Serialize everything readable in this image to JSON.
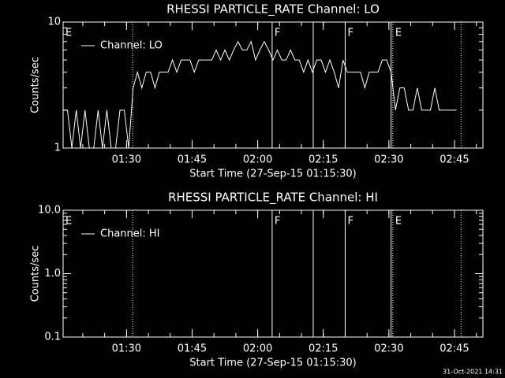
{
  "chart_data": [
    {
      "type": "line",
      "title": "RHESSI PARTICLE_RATE Channel: LO",
      "xlabel": "Start Time (27-Sep-15 01:15:30)",
      "ylabel": "Counts/sec",
      "log_y": true,
      "ylim": [
        1,
        10
      ],
      "yticks": [
        1,
        10
      ],
      "xlim": [
        75.5,
        171.5
      ],
      "xticks": [
        {
          "value": 90,
          "label": "01:30"
        },
        {
          "value": 105,
          "label": "01:45"
        },
        {
          "value": 120,
          "label": "02:00"
        },
        {
          "value": 135,
          "label": "02:15"
        },
        {
          "value": 150,
          "label": "02:30"
        },
        {
          "value": 165,
          "label": "02:45"
        }
      ],
      "x": [
        75.5,
        76.5,
        77.5,
        78.5,
        79.5,
        80.5,
        81.5,
        82.5,
        83.5,
        84.5,
        85.5,
        86.5,
        87.5,
        88.5,
        89.5,
        90.5,
        91.5,
        92.5,
        93.5,
        94.5,
        95.5,
        96.5,
        97.5,
        98.5,
        99.5,
        100.5,
        101.5,
        102.5,
        103.5,
        104.5,
        105.5,
        106.5,
        107.5,
        108.5,
        109.5,
        110.5,
        111.5,
        112.5,
        113.5,
        114.5,
        115.5,
        116.5,
        117.5,
        118.5,
        119.5,
        120.5,
        121.5,
        122.5,
        123.5,
        124.5,
        125.5,
        126.5,
        127.5,
        128.5,
        129.5,
        130.5,
        131.5,
        132.5,
        133.5,
        134.5,
        135.5,
        136.5,
        137.5,
        138.5,
        139.5,
        140.5,
        141.5,
        142.5,
        143.5,
        144.5,
        145.5,
        146.5,
        147.5,
        148.5,
        149.5,
        150.5,
        151.5,
        152.5,
        153.5,
        154.5,
        155.5,
        156.5,
        157.5,
        158.5,
        159.5,
        160.5,
        161.5,
        162.5,
        163.5,
        164.5,
        165.5
      ],
      "series": [
        {
          "name": "Channel: LO",
          "color": "#ffffff",
          "values": [
            2,
            2,
            1,
            2,
            1,
            2,
            1,
            1,
            2,
            1,
            2,
            1,
            1,
            2,
            2,
            1,
            3,
            4,
            3,
            4,
            4,
            3,
            4,
            4,
            4,
            5,
            4,
            5,
            5,
            5,
            4,
            5,
            5,
            5,
            5,
            6,
            5,
            6,
            5,
            6,
            7,
            6,
            6,
            7,
            5,
            6,
            7,
            6,
            5,
            6,
            5,
            5,
            6,
            5,
            5,
            4,
            5,
            4,
            5,
            5,
            4,
            5,
            4,
            3,
            5,
            4,
            4,
            4,
            4,
            3,
            4,
            4,
            4,
            5,
            5,
            4,
            2,
            3,
            3,
            2,
            2,
            3,
            2,
            2,
            2,
            3,
            2,
            2,
            2,
            2,
            2
          ]
        }
      ],
      "events": [
        {
          "x": 75.5,
          "style": "dotted",
          "label": "E"
        },
        {
          "x": 91.4,
          "style": "dotted"
        },
        {
          "x": 123.3,
          "style": "solid",
          "label": "F"
        },
        {
          "x": 132.7,
          "style": "solid"
        },
        {
          "x": 140.0,
          "style": "solid",
          "label": "F"
        },
        {
          "x": 150.5,
          "style": "solid"
        },
        {
          "x": 150.9,
          "style": "dotted",
          "label": "E"
        },
        {
          "x": 166.5,
          "style": "dotted"
        }
      ]
    },
    {
      "type": "line",
      "title": "RHESSI PARTICLE_RATE Channel: HI",
      "xlabel": "Start Time (27-Sep-15 01:15:30)",
      "ylabel": "Counts/sec",
      "log_y": true,
      "ylim": [
        0.1,
        10
      ],
      "yticks": [
        0.1,
        {
          "value": 1,
          "label": "1.0"
        },
        {
          "value": 10,
          "label": "10.0"
        }
      ],
      "xlim": [
        75.5,
        171.5
      ],
      "xticks": [
        {
          "value": 90,
          "label": "01:30"
        },
        {
          "value": 105,
          "label": "01:45"
        },
        {
          "value": 120,
          "label": "02:00"
        },
        {
          "value": 135,
          "label": "02:15"
        },
        {
          "value": 150,
          "label": "02:30"
        },
        {
          "value": 165,
          "label": "02:45"
        }
      ],
      "x": [],
      "series": [
        {
          "name": "Channel: HI",
          "color": "#ffffff",
          "values": []
        }
      ],
      "events": [
        {
          "x": 75.5,
          "style": "dotted",
          "label": "E"
        },
        {
          "x": 91.4,
          "style": "dotted"
        },
        {
          "x": 123.3,
          "style": "solid",
          "label": "F"
        },
        {
          "x": 132.7,
          "style": "solid"
        },
        {
          "x": 140.0,
          "style": "solid",
          "label": "F"
        },
        {
          "x": 150.5,
          "style": "solid"
        },
        {
          "x": 150.9,
          "style": "dotted",
          "label": "E"
        },
        {
          "x": 166.5,
          "style": "dotted"
        }
      ]
    }
  ],
  "timestamp": "31-Oct-2021 14:31"
}
